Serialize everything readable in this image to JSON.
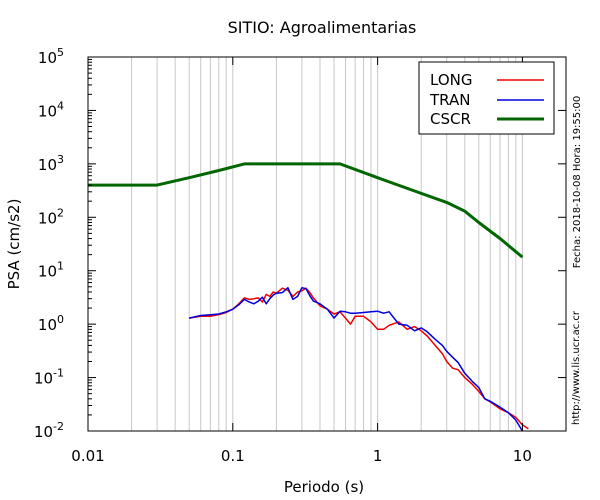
{
  "chart_data": {
    "type": "line",
    "title": "SITIO: Agroalimentarias",
    "xlabel": "Periodo (s)",
    "ylabel": "PSA (cm/s2)",
    "xscale": "log",
    "yscale": "log",
    "xlim": [
      0.01,
      20
    ],
    "ylim": [
      0.01,
      100000
    ],
    "grid": "vertical log grid on",
    "legend_position": "top-right",
    "x_ticks": [
      {
        "v": 0.01,
        "label": "0.01"
      },
      {
        "v": 0.1,
        "label": "0.1"
      },
      {
        "v": 1,
        "label": "1"
      },
      {
        "v": 10,
        "label": "10"
      }
    ],
    "y_ticks": [
      {
        "v": 100000,
        "base": "10",
        "exp": "5"
      },
      {
        "v": 10000,
        "base": "10",
        "exp": "4"
      },
      {
        "v": 1000,
        "base": "10",
        "exp": "3"
      },
      {
        "v": 100,
        "base": "10",
        "exp": "2"
      },
      {
        "v": 10,
        "base": "10",
        "exp": "1"
      },
      {
        "v": 1,
        "base": "10",
        "exp": "0"
      },
      {
        "v": 0.1,
        "base": "10",
        "exp": "-1"
      },
      {
        "v": 0.01,
        "base": "10",
        "exp": "-2"
      }
    ],
    "side_text": {
      "date": "Fecha: 2018-10-08  Hora: 19:55:00",
      "url": "http://www.lis.ucr.ac.cr"
    },
    "series": [
      {
        "name": "LONG",
        "color": "#ee0000",
        "x": [
          0.05,
          0.06,
          0.07,
          0.08,
          0.09,
          0.1,
          0.11,
          0.12,
          0.13,
          0.14,
          0.15,
          0.16,
          0.17,
          0.18,
          0.19,
          0.2,
          0.22,
          0.24,
          0.26,
          0.28,
          0.3,
          0.32,
          0.34,
          0.36,
          0.4,
          0.45,
          0.5,
          0.55,
          0.6,
          0.65,
          0.7,
          0.8,
          0.9,
          1.0,
          1.1,
          1.2,
          1.4,
          1.6,
          1.8,
          2.0,
          2.2,
          2.5,
          2.8,
          3.0,
          3.3,
          3.6,
          4.0,
          4.5,
          5.0,
          5.5,
          6.0,
          7.0,
          8.0,
          9.0,
          10.0,
          11.0
        ],
        "y": [
          1.3,
          1.4,
          1.4,
          1.5,
          1.65,
          1.9,
          2.4,
          3.1,
          2.9,
          3.0,
          3.1,
          2.6,
          3.6,
          3.3,
          4.0,
          3.8,
          4.7,
          4.3,
          3.3,
          4.0,
          4.2,
          4.7,
          3.9,
          3.1,
          2.2,
          1.9,
          1.55,
          1.7,
          1.3,
          1.0,
          1.4,
          1.4,
          1.1,
          0.8,
          0.8,
          0.95,
          1.1,
          0.8,
          0.9,
          0.75,
          0.6,
          0.4,
          0.28,
          0.2,
          0.15,
          0.14,
          0.1,
          0.075,
          0.055,
          0.04,
          0.035,
          0.026,
          0.022,
          0.018,
          0.013,
          0.011
        ]
      },
      {
        "name": "TRAN",
        "color": "#0000dd",
        "x": [
          0.05,
          0.06,
          0.07,
          0.08,
          0.09,
          0.1,
          0.11,
          0.12,
          0.13,
          0.14,
          0.15,
          0.16,
          0.17,
          0.18,
          0.19,
          0.2,
          0.22,
          0.24,
          0.26,
          0.28,
          0.3,
          0.32,
          0.34,
          0.36,
          0.4,
          0.45,
          0.5,
          0.55,
          0.6,
          0.65,
          0.7,
          0.8,
          0.9,
          1.0,
          1.1,
          1.2,
          1.4,
          1.6,
          1.8,
          2.0,
          2.2,
          2.5,
          2.8,
          3.0,
          3.3,
          3.6,
          4.0,
          4.5,
          5.0,
          5.5,
          6.0,
          7.0,
          8.0,
          9.0,
          10.0
        ],
        "y": [
          1.3,
          1.45,
          1.5,
          1.55,
          1.7,
          1.9,
          2.3,
          2.9,
          2.6,
          2.4,
          2.7,
          3.2,
          2.4,
          3.0,
          3.5,
          3.8,
          3.9,
          4.8,
          2.9,
          3.3,
          4.8,
          4.6,
          3.4,
          2.7,
          2.4,
          1.9,
          1.3,
          1.75,
          1.7,
          1.6,
          1.6,
          1.65,
          1.7,
          1.75,
          1.6,
          1.7,
          1.0,
          0.95,
          0.75,
          0.85,
          0.72,
          0.52,
          0.4,
          0.31,
          0.24,
          0.19,
          0.12,
          0.085,
          0.065,
          0.04,
          0.036,
          0.028,
          0.022,
          0.016,
          0.01
        ]
      },
      {
        "name": "CSCR",
        "color": "#006600",
        "x": [
          0.01,
          0.03,
          0.05,
          0.08,
          0.12,
          0.55,
          1.0,
          1.5,
          2.0,
          3.0,
          4.0,
          5.0,
          7.0,
          10.0
        ],
        "y": [
          400,
          400,
          550,
          750,
          1000,
          1000,
          550,
          370,
          280,
          190,
          130,
          80,
          40,
          18
        ]
      }
    ]
  }
}
